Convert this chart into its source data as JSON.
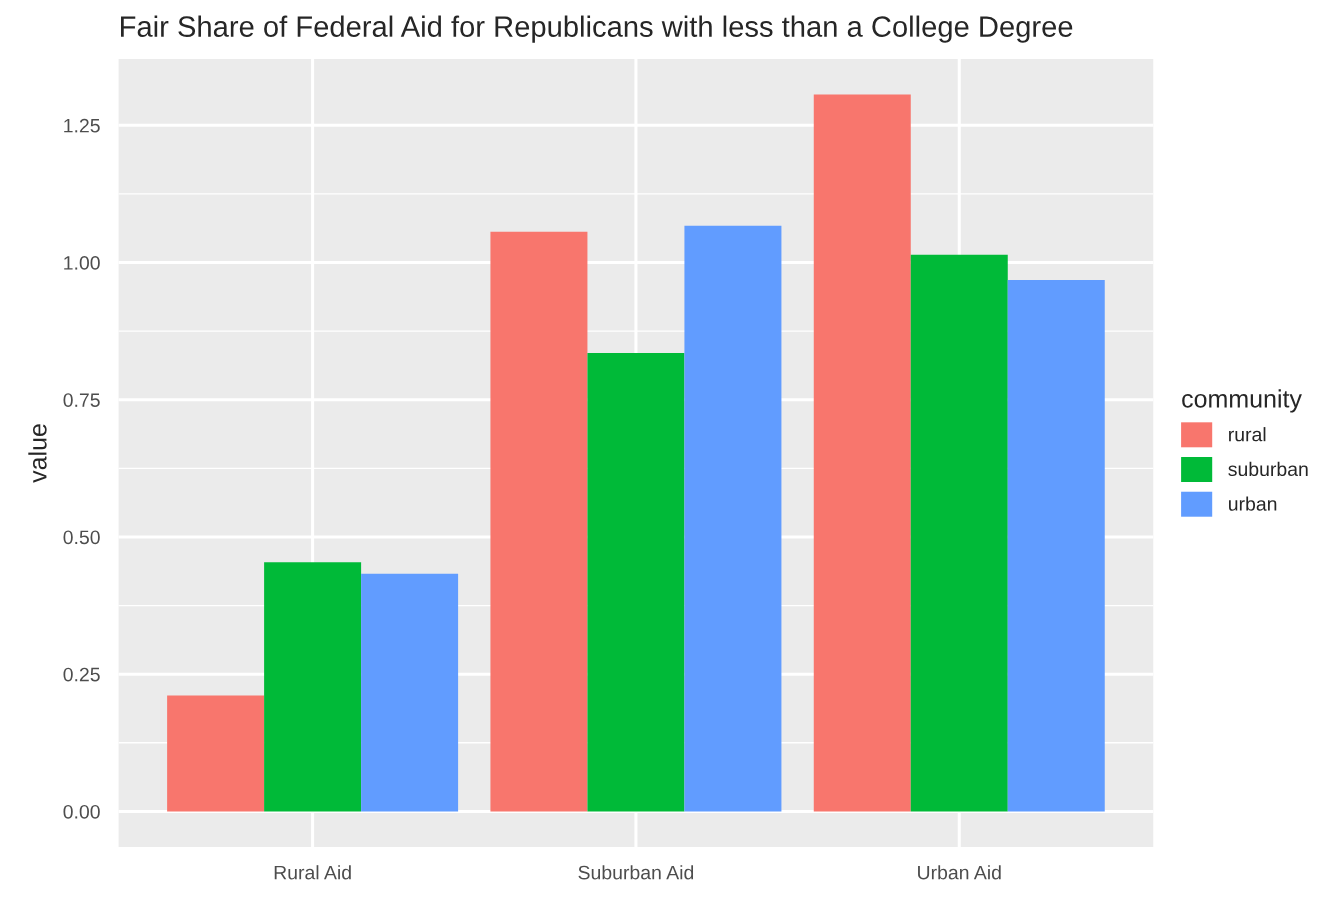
{
  "chart_data": {
    "type": "bar",
    "title": "Fair Share of Federal Aid for Republicans with less than a College Degree",
    "ylabel": "value",
    "legend_title": "community",
    "categories": [
      "Rural Aid",
      "Suburban Aid",
      "Urban Aid"
    ],
    "series": [
      {
        "name": "rural",
        "color": "#f8766d",
        "values": [
          0.211,
          1.056,
          1.306
        ]
      },
      {
        "name": "suburban",
        "color": "#00ba38",
        "values": [
          0.454,
          0.835,
          1.014
        ]
      },
      {
        "name": "urban",
        "color": "#619cff",
        "values": [
          0.433,
          1.067,
          0.968
        ]
      }
    ],
    "ylim": [
      -0.065,
      1.371
    ],
    "yticks": [
      {
        "value": 0,
        "label": "0.00"
      },
      {
        "value": 0.25,
        "label": "0.25"
      },
      {
        "value": 0.5,
        "label": "0.50"
      },
      {
        "value": 0.75,
        "label": "0.75"
      },
      {
        "value": 1.0,
        "label": "1.00"
      },
      {
        "value": 1.25,
        "label": "1.25"
      }
    ],
    "grid": true,
    "legend": "right"
  }
}
